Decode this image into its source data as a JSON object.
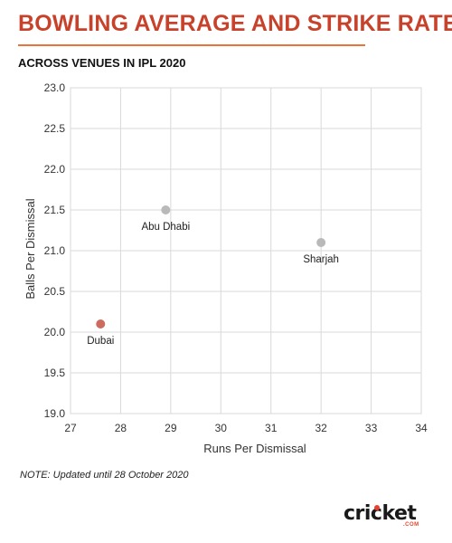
{
  "header": {
    "title": "BOWLING AVERAGE AND STRIKE RATE",
    "subtitle": "ACROSS VENUES IN IPL 2020"
  },
  "note": "NOTE: Updated until 28 October 2020",
  "logo": {
    "word": "cricket",
    "sub": ".COM"
  },
  "colors": {
    "title": "#c8412b",
    "rule": "#e8743b",
    "point_default": "#b9b9b9",
    "point_highlight": "#cd6b5e",
    "grid": "#d9d9d9"
  },
  "chart_data": {
    "type": "scatter",
    "xlabel": "Runs Per Dismissal",
    "ylabel": "Balls Per Dismissal",
    "xlim": [
      27,
      34
    ],
    "ylim": [
      19.0,
      23.0
    ],
    "xticks": [
      "27",
      "28",
      "29",
      "30",
      "31",
      "32",
      "33",
      "34"
    ],
    "yticks": [
      "19.0",
      "19.5",
      "20.0",
      "20.5",
      "21.0",
      "21.5",
      "22.0",
      "22.5",
      "23.0"
    ],
    "grid": true,
    "points": [
      {
        "label": "Abu Dhabi",
        "x": 28.9,
        "y": 21.5,
        "color": "#b9b9b9"
      },
      {
        "label": "Sharjah",
        "x": 32.0,
        "y": 21.1,
        "color": "#b9b9b9"
      },
      {
        "label": "Dubai",
        "x": 27.6,
        "y": 20.1,
        "color": "#cd6b5e"
      }
    ]
  }
}
